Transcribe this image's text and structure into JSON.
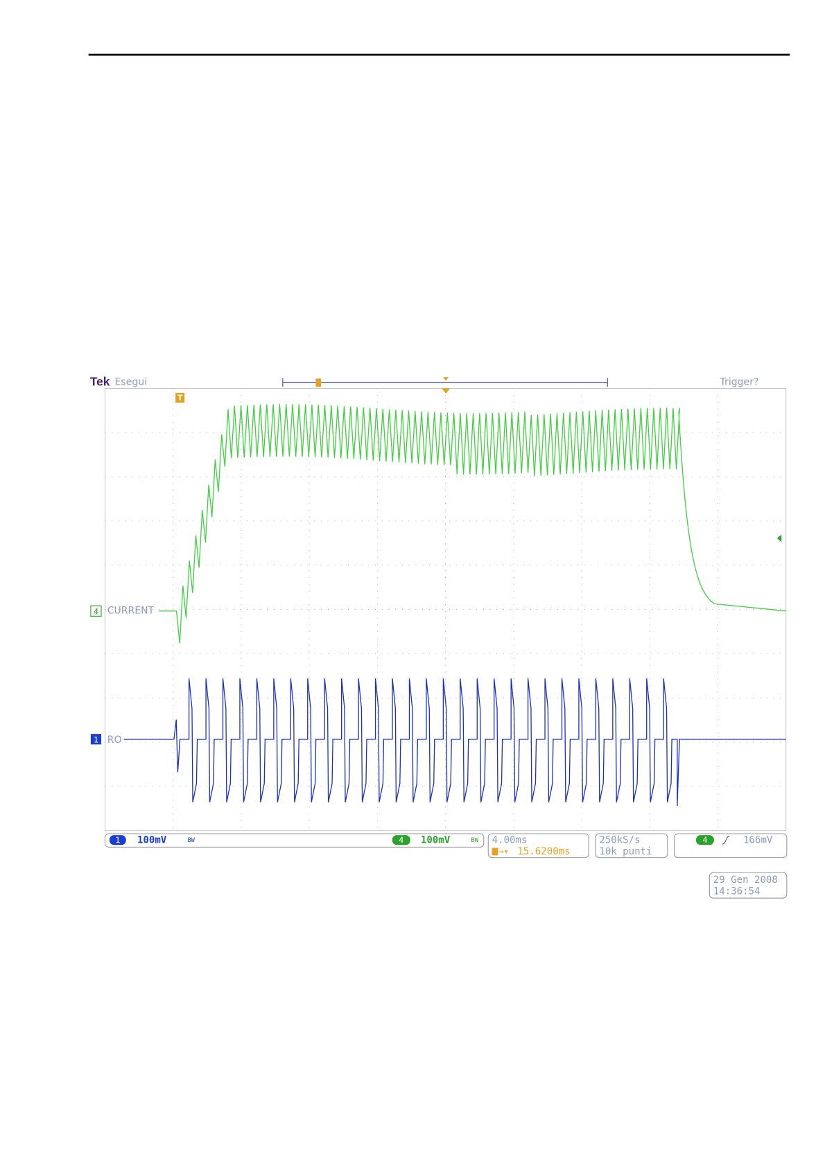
{
  "scope": {
    "brand": "Tek",
    "status": "Esegui",
    "trigger_status": "Trigger?",
    "trigger_marker": "T",
    "channels": [
      {
        "number": "4",
        "label": "CURRENT"
      },
      {
        "number": "1",
        "label": "RO"
      }
    ],
    "readouts": [
      {
        "number": "1",
        "scale": "100mV",
        "bandwidth": "BW"
      },
      {
        "number": "4",
        "scale": "100mV",
        "bandwidth": "BW"
      }
    ],
    "timebase": "4.00ms",
    "trigger_position": "15.6200ms",
    "sample_rate": "250kS/s",
    "record_length": "10k punti",
    "trigger": {
      "channel": "4",
      "level": "166mV"
    },
    "date": "29 Gen 2008",
    "time": "14:36:54"
  }
}
